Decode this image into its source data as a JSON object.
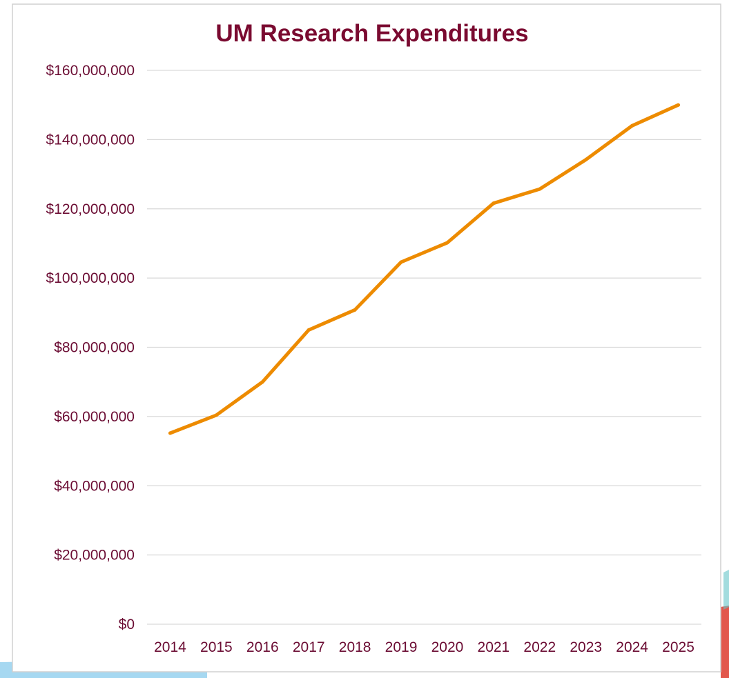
{
  "colors": {
    "title": "#7a0a30",
    "tick_text": "#6b0c33",
    "gridline": "#d9d9d9",
    "line": "#ed8b00",
    "background": "#ffffff",
    "frame_shadow": "#d0d0d0",
    "deco_blue": "#5db8e6",
    "deco_red": "#e2574c",
    "deco_teal": "#66c5c8"
  },
  "chart_data": {
    "type": "line",
    "title": "UM Research Expenditures",
    "xlabel": "",
    "ylabel": "",
    "categories": [
      "2014",
      "2015",
      "2016",
      "2017",
      "2018",
      "2019",
      "2020",
      "2021",
      "2022",
      "2023",
      "2024",
      "2025"
    ],
    "series": [
      {
        "values": [
          55200000,
          60400000,
          70000000,
          85000000,
          90800000,
          104600000,
          110200000,
          121600000,
          125700000,
          134200000,
          144000000,
          150000000
        ]
      }
    ],
    "ylim": [
      0,
      160000000
    ],
    "yticks": [
      0,
      20000000,
      40000000,
      60000000,
      80000000,
      100000000,
      120000000,
      140000000,
      160000000
    ],
    "ytick_labels": [
      "$0",
      "$20,000,000",
      "$40,000,000",
      "$60,000,000",
      "$80,000,000",
      "$100,000,000",
      "$120,000,000",
      "$140,000,000",
      "$160,000,000"
    ],
    "grid": true,
    "legend": "none"
  }
}
